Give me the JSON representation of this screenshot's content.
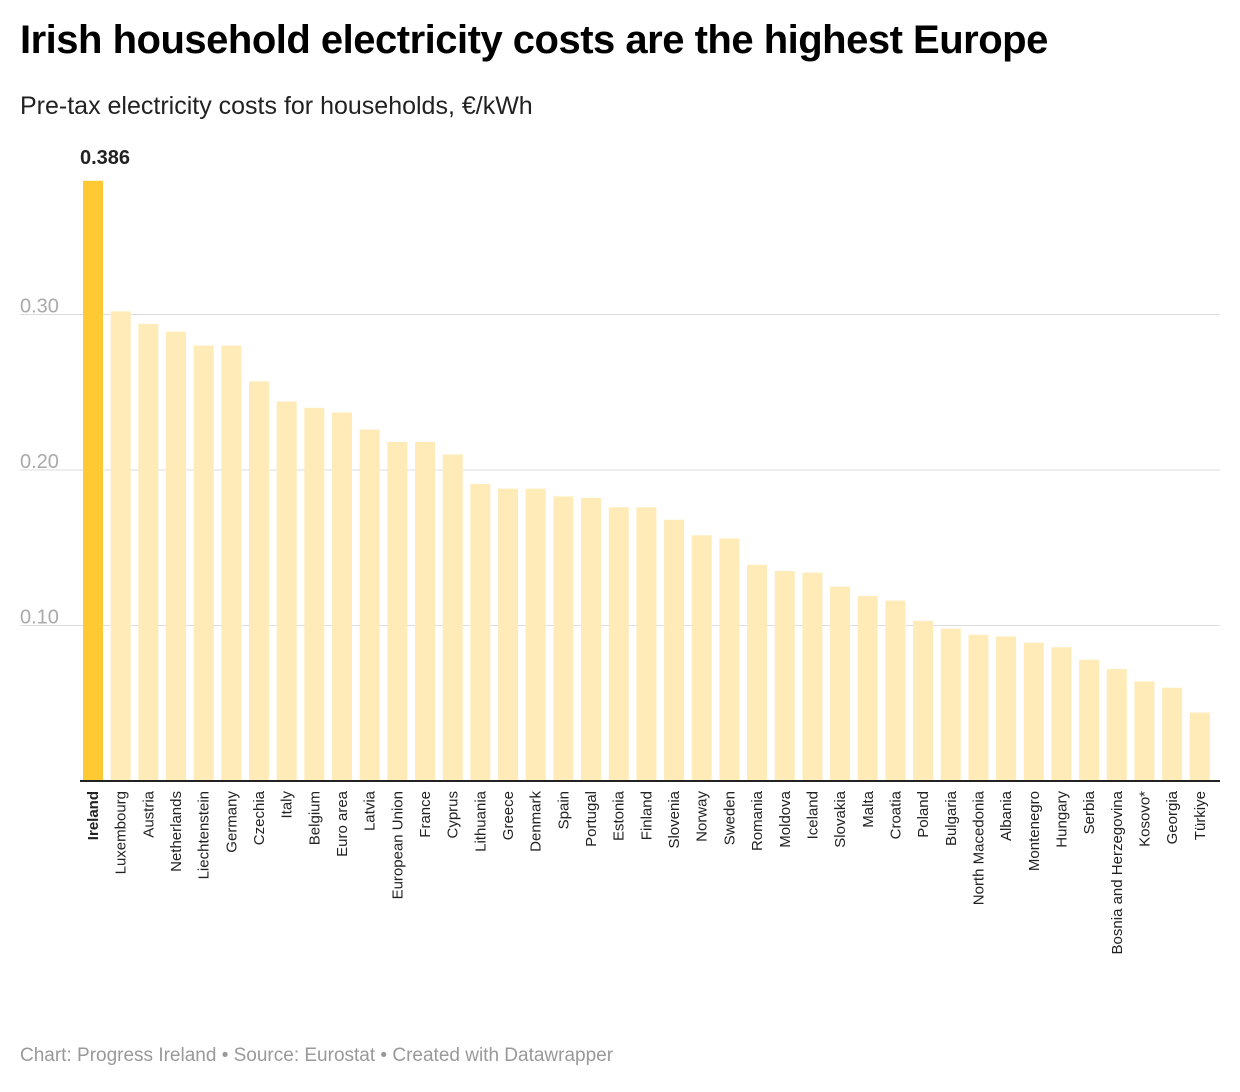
{
  "chart_data": {
    "type": "bar",
    "title": "Irish household electricity costs are the highest Europe",
    "subtitle": "Pre-tax electricity costs for households, €/kWh",
    "footer": "Chart: Progress Ireland • Source: Eurostat • Created with Datawrapper",
    "xlabel": "",
    "ylabel": "",
    "ylim": [
      0,
      0.386
    ],
    "yticks": [
      {
        "value": 0.1,
        "label": "0.10"
      },
      {
        "value": 0.2,
        "label": "0.20"
      },
      {
        "value": 0.3,
        "label": "0.30"
      }
    ],
    "grid": true,
    "highlight": "Ireland",
    "highlight_label": "0.386",
    "colors": {
      "highlight": "#ffc933",
      "default": "#feebb7",
      "grid": "#dddddd",
      "axis": "#222222"
    },
    "categories": [
      "Ireland",
      "Luxembourg",
      "Austria",
      "Netherlands",
      "Liechtenstein",
      "Germany",
      "Czechia",
      "Italy",
      "Belgium",
      "Euro area",
      "Latvia",
      "European Union",
      "France",
      "Cyprus",
      "Lithuania",
      "Greece",
      "Denmark",
      "Spain",
      "Portugal",
      "Estonia",
      "Finland",
      "Slovenia",
      "Norway",
      "Sweden",
      "Romania",
      "Moldova",
      "Iceland",
      "Slovakia",
      "Malta",
      "Croatia",
      "Poland",
      "Bulgaria",
      "North Macedonia",
      "Albania",
      "Montenegro",
      "Hungary",
      "Serbia",
      "Bosnia and Herzegovina",
      "Kosovo*",
      "Georgia",
      "Türkiye"
    ],
    "values": [
      0.386,
      0.302,
      0.294,
      0.289,
      0.28,
      0.28,
      0.257,
      0.244,
      0.24,
      0.237,
      0.226,
      0.218,
      0.218,
      0.21,
      0.191,
      0.188,
      0.188,
      0.183,
      0.182,
      0.176,
      0.176,
      0.168,
      0.158,
      0.156,
      0.139,
      0.135,
      0.134,
      0.125,
      0.119,
      0.116,
      0.103,
      0.098,
      0.094,
      0.093,
      0.089,
      0.086,
      0.078,
      0.072,
      0.064,
      0.06,
      0.044
    ]
  }
}
